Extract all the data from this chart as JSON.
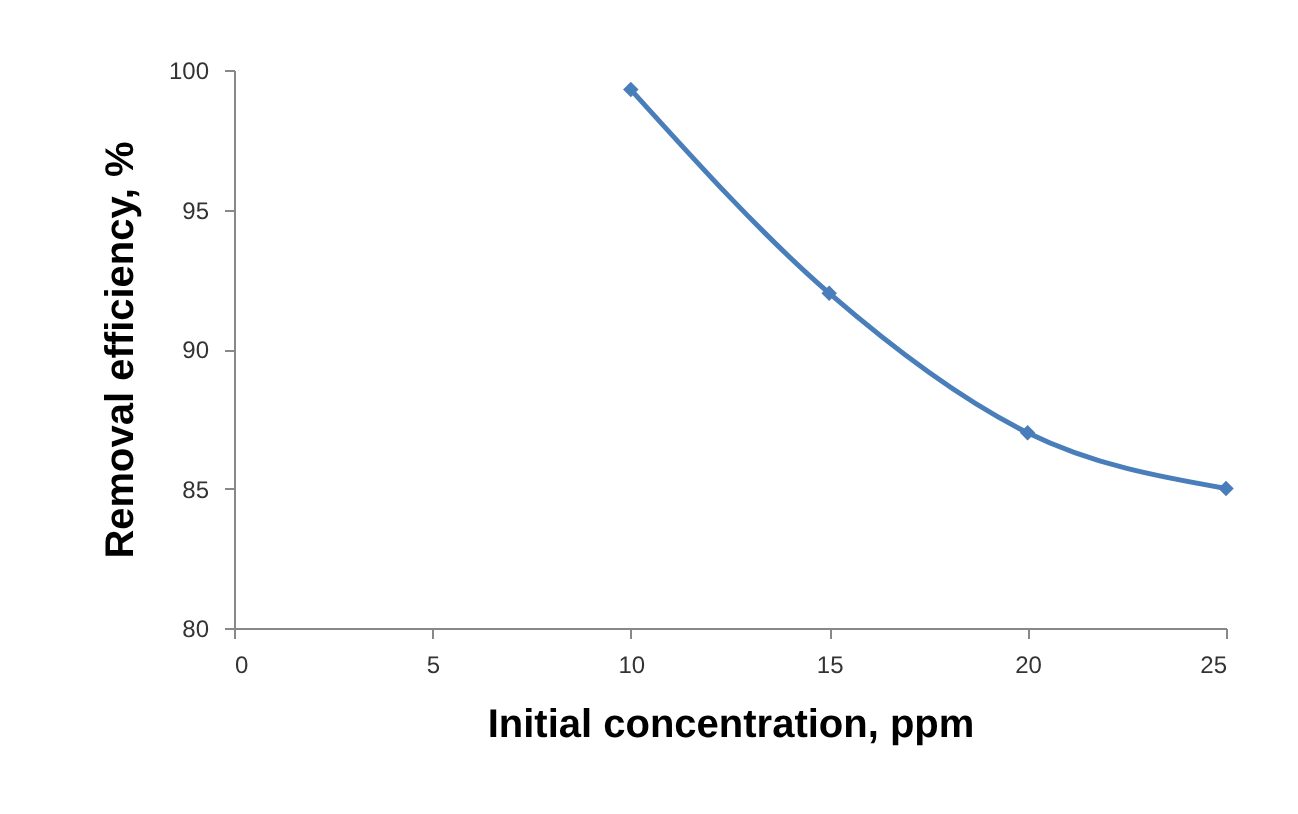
{
  "chart_data": {
    "type": "line",
    "xlabel": "Initial concentration, ppm",
    "ylabel": "Removal efficiency, %",
    "x": [
      10,
      15,
      20,
      25
    ],
    "series": [
      {
        "color": "#4a7ebb",
        "values": [
          99.3,
          92,
          87,
          85
        ]
      }
    ],
    "xlim": [
      0,
      25
    ],
    "xticks": [
      0,
      5,
      10,
      15,
      20,
      25
    ],
    "ylim": [
      80,
      100
    ],
    "yticks": [
      80,
      85,
      90,
      95,
      100
    ],
    "grid": false,
    "legend": false,
    "marker": "diamond",
    "line_style": "solid"
  }
}
